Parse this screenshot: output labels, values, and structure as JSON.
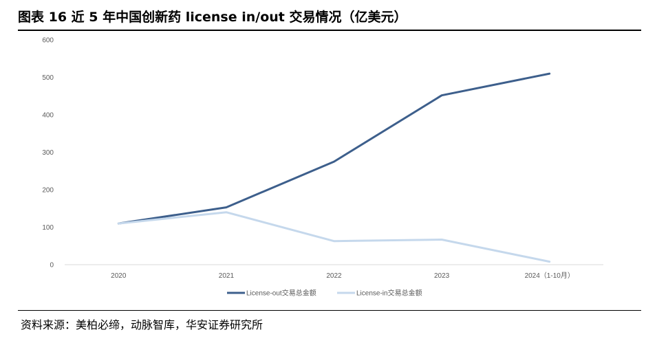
{
  "figure": {
    "title": "图表 16 近 5 年中国创新药 license in/out 交易情况（亿美元）",
    "source": "资料来源：美柏必缔，动脉智库，华安证券研究所"
  },
  "chart_data": {
    "type": "line",
    "categories": [
      "2020",
      "2021",
      "2022",
      "2023",
      "2024（1-10月）"
    ],
    "series": [
      {
        "name": "License-out交易总金额",
        "values": [
          110,
          153,
          275,
          452,
          510
        ],
        "color": "#3d5f8c"
      },
      {
        "name": "License-in交易总金额",
        "values": [
          110,
          140,
          63,
          67,
          8
        ],
        "color": "#c5d8ec"
      }
    ],
    "yticks": [
      0,
      100,
      200,
      300,
      400,
      500,
      600
    ],
    "ylim": [
      0,
      600
    ],
    "grid": false,
    "legend_position": "bottom"
  }
}
